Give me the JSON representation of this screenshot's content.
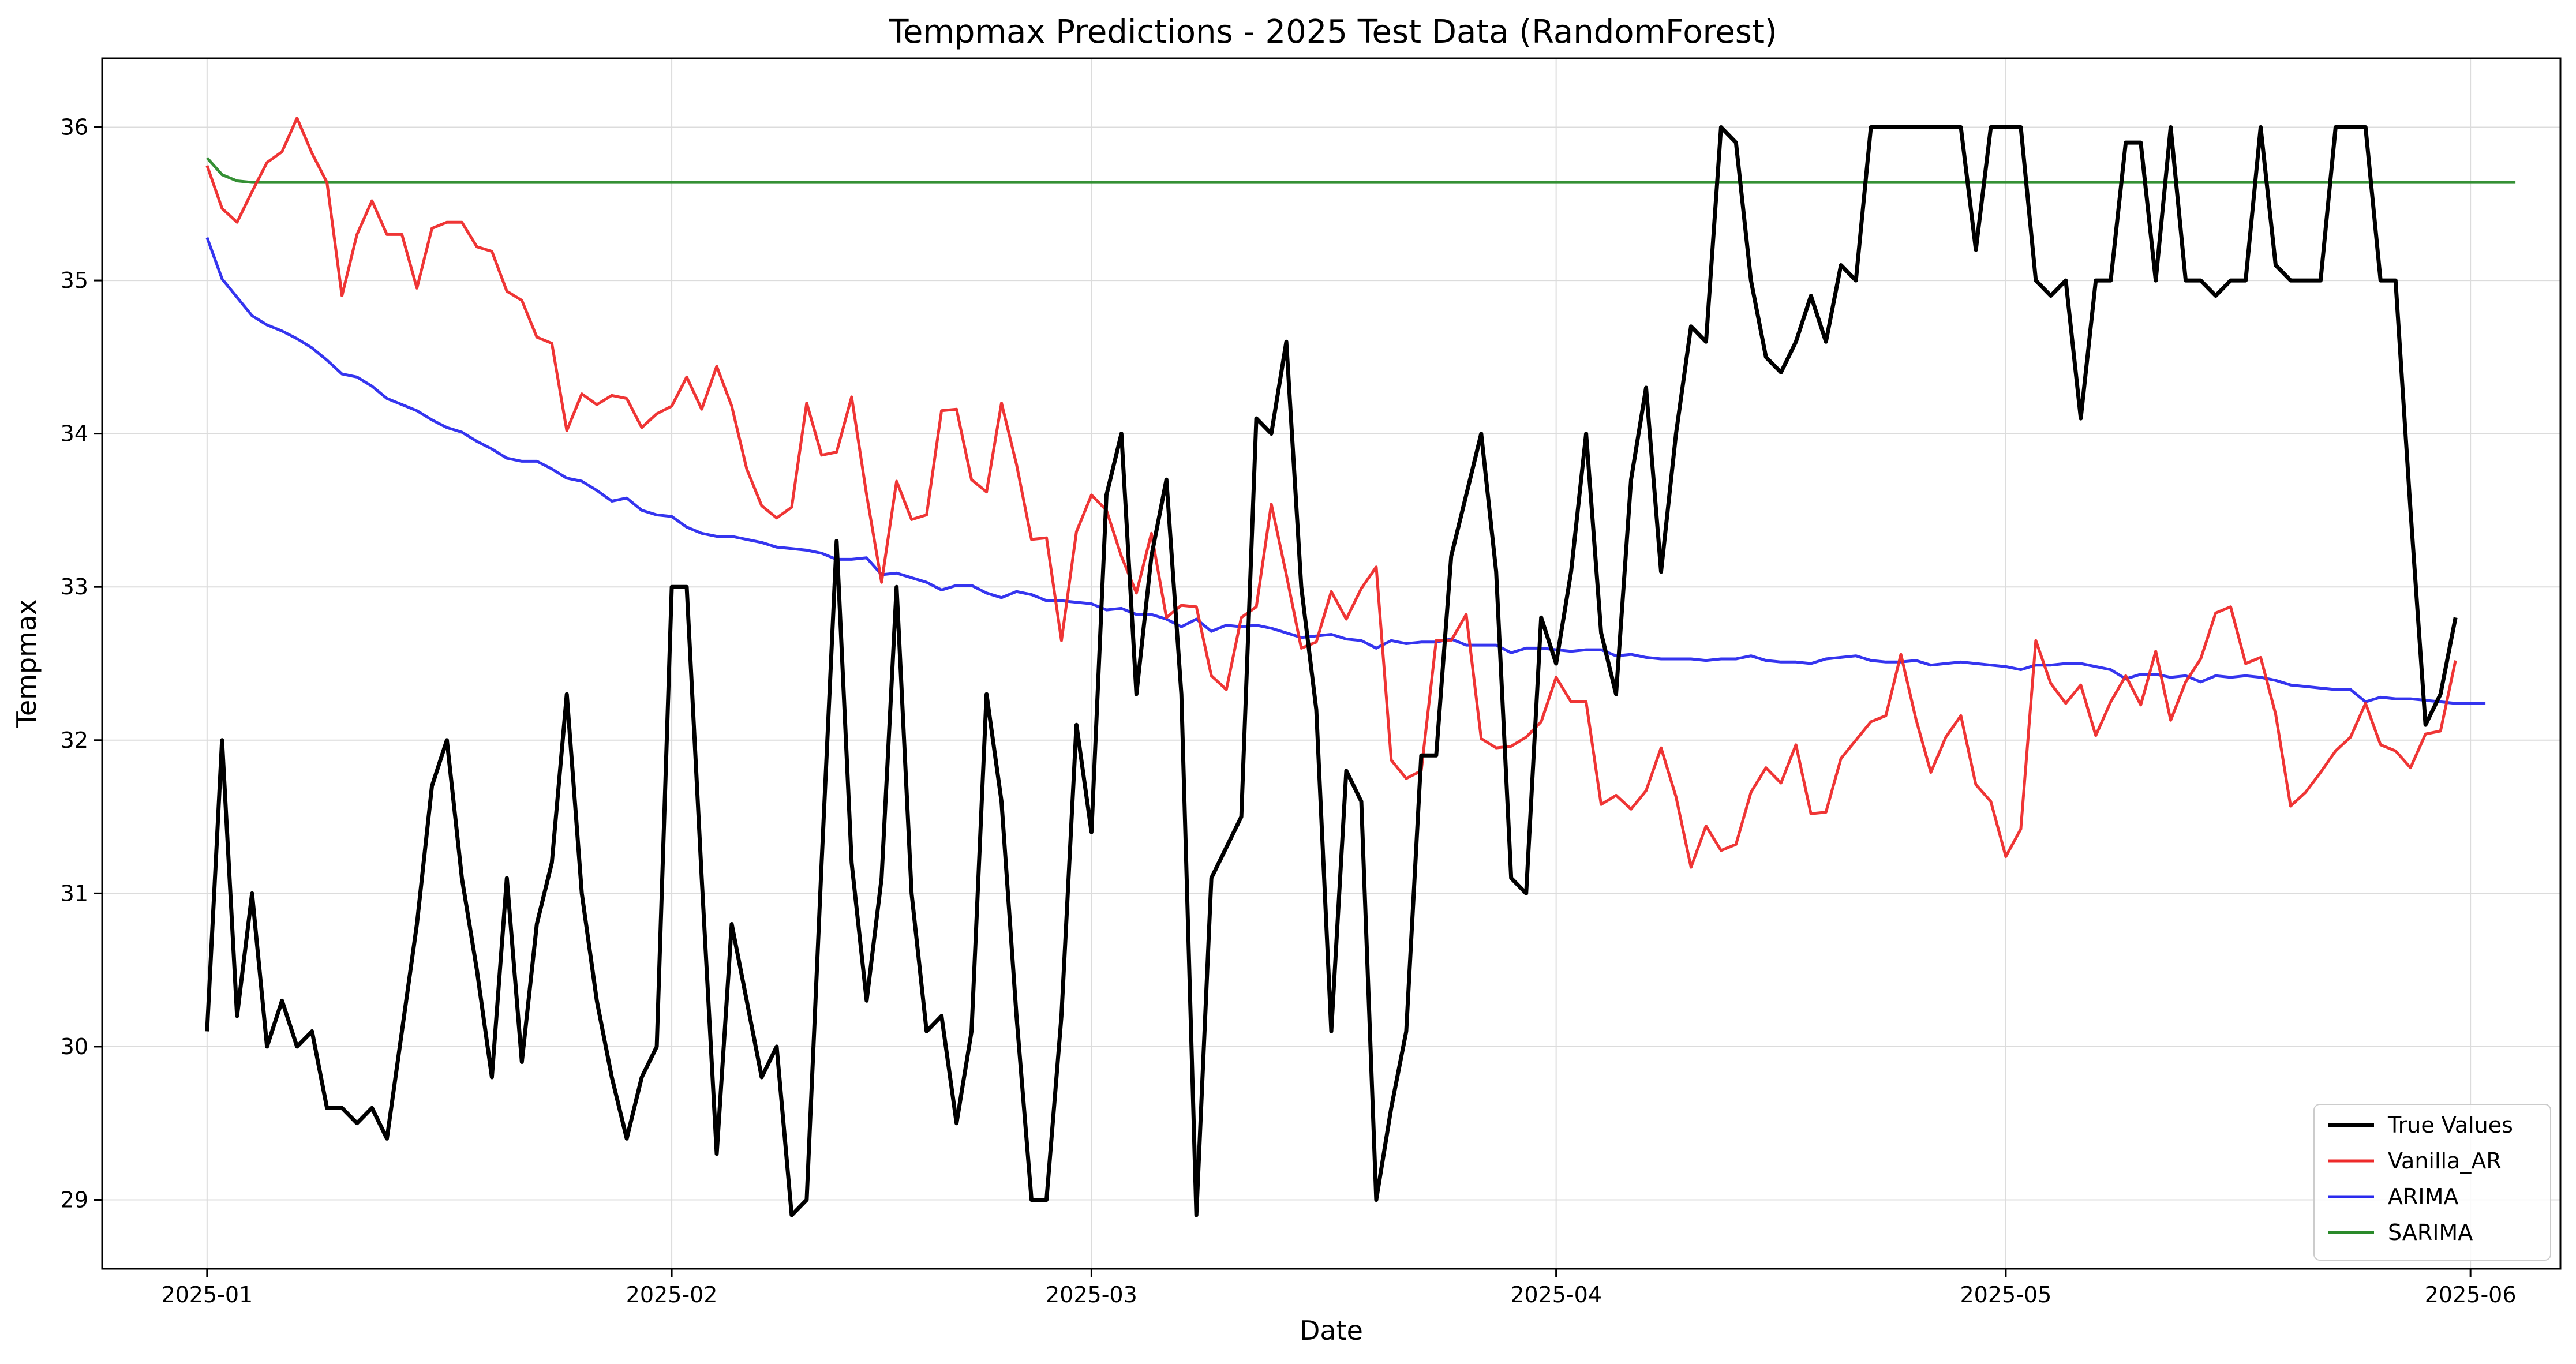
{
  "chart_data": {
    "type": "line",
    "title": "Tempmax Predictions - 2025 Test Data (RandomForest)",
    "xlabel": "Date",
    "ylabel": "Tempmax",
    "x_start": "2025-01-01",
    "x_step_days": 1,
    "xlim": [
      "2024-12-25",
      "2025-06-07"
    ],
    "ylim": [
      28.55,
      36.45
    ],
    "x_ticks": [
      "2025-01",
      "2025-02",
      "2025-03",
      "2025-04",
      "2025-05",
      "2025-06"
    ],
    "y_ticks": [
      29,
      30,
      31,
      32,
      33,
      34,
      35,
      36
    ],
    "grid": true,
    "legend_position": "lower-right",
    "series": [
      {
        "name": "True Values",
        "color": "#000000",
        "values": [
          30.1,
          32.0,
          30.2,
          31.0,
          30.0,
          30.3,
          30.0,
          30.1,
          29.6,
          29.6,
          29.5,
          29.6,
          29.4,
          30.1,
          30.8,
          31.7,
          32.0,
          31.1,
          30.5,
          29.8,
          31.1,
          29.9,
          30.8,
          31.2,
          32.3,
          31.0,
          30.3,
          29.8,
          29.4,
          29.8,
          30.0,
          33.0,
          33.0,
          31.1,
          29.3,
          30.8,
          30.3,
          29.8,
          30.0,
          28.9,
          29.0,
          31.2,
          33.3,
          31.2,
          30.3,
          31.1,
          33.0,
          31.0,
          30.1,
          30.2,
          29.5,
          30.1,
          32.3,
          31.6,
          30.2,
          29.0,
          29.0,
          30.2,
          32.1,
          31.4,
          33.6,
          34.0,
          32.3,
          33.2,
          33.7,
          32.3,
          28.9,
          31.1,
          31.3,
          31.5,
          34.1,
          34.0,
          34.6,
          33.0,
          32.2,
          30.1,
          31.8,
          31.6,
          29.0,
          29.6,
          30.1,
          31.9,
          31.9,
          33.2,
          33.6,
          34.0,
          33.1,
          31.1,
          31.0,
          32.8,
          32.5,
          33.1,
          34.0,
          32.7,
          32.3,
          33.7,
          34.3,
          33.1,
          34.0,
          34.7,
          34.6,
          36.0,
          35.9,
          35.0,
          34.5,
          34.4,
          34.6,
          34.9,
          34.6,
          35.1,
          35.0,
          36.0,
          36.0,
          36.0,
          36.0,
          36.0,
          36.0,
          36.0,
          35.2,
          36.0,
          36.0,
          36.0,
          35.0,
          34.9,
          35.0,
          34.1,
          35.0,
          35.0,
          35.9,
          35.9,
          35.0,
          36.0,
          35.0,
          35.0,
          34.9,
          35.0,
          35.0,
          36.0,
          35.1,
          35.0,
          35.0,
          35.0,
          36.0,
          36.0,
          36.0,
          35.0,
          35.0,
          33.5,
          32.1,
          32.3,
          32.8
        ]
      },
      {
        "name": "Vanilla_AR",
        "color": "#ee2a2a",
        "values": [
          35.75,
          35.47,
          35.38,
          35.58,
          35.77,
          35.84,
          36.06,
          35.83,
          35.64,
          34.9,
          35.3,
          35.52,
          35.3,
          35.3,
          34.95,
          35.34,
          35.38,
          35.38,
          35.22,
          35.19,
          34.93,
          34.87,
          34.63,
          34.59,
          34.02,
          34.26,
          34.19,
          34.25,
          34.23,
          34.04,
          34.13,
          34.18,
          34.37,
          34.16,
          34.44,
          34.18,
          33.77,
          33.53,
          33.45,
          33.52,
          34.2,
          33.86,
          33.88,
          34.24,
          33.6,
          33.03,
          33.69,
          33.44,
          33.47,
          34.15,
          34.16,
          33.7,
          33.62,
          34.2,
          33.8,
          33.31,
          33.32,
          32.65,
          33.36,
          33.6,
          33.5,
          33.2,
          32.96,
          33.35,
          32.8,
          32.88,
          32.87,
          32.42,
          32.33,
          32.8,
          32.87,
          33.54,
          33.08,
          32.6,
          32.64,
          32.97,
          32.79,
          32.99,
          33.13,
          31.87,
          31.75,
          31.8,
          32.65,
          32.65,
          32.82,
          32.01,
          31.95,
          31.96,
          32.02,
          32.12,
          32.41,
          32.25,
          32.25,
          31.58,
          31.64,
          31.55,
          31.67,
          31.95,
          31.63,
          31.17,
          31.44,
          31.28,
          31.32,
          31.66,
          31.82,
          31.72,
          31.97,
          31.52,
          31.53,
          31.88,
          32.0,
          32.12,
          32.16,
          32.56,
          32.14,
          31.79,
          32.02,
          32.16,
          31.71,
          31.6,
          31.24,
          31.42,
          32.65,
          32.37,
          32.24,
          32.36,
          32.03,
          32.25,
          32.42,
          32.23,
          32.58,
          32.13,
          32.38,
          32.53,
          32.83,
          32.87,
          32.5,
          32.54,
          32.17,
          31.57,
          31.66,
          31.79,
          31.93,
          32.02,
          32.24,
          31.97,
          31.93,
          31.82,
          32.04,
          32.06,
          32.52
        ]
      },
      {
        "name": "ARIMA",
        "color": "#2a2aee",
        "values": [
          35.28,
          35.01,
          34.89,
          34.77,
          34.71,
          34.67,
          34.62,
          34.56,
          34.48,
          34.39,
          34.37,
          34.31,
          34.23,
          34.19,
          34.15,
          34.09,
          34.04,
          34.01,
          33.95,
          33.9,
          33.84,
          33.82,
          33.82,
          33.77,
          33.71,
          33.69,
          33.63,
          33.56,
          33.58,
          33.5,
          33.47,
          33.46,
          33.39,
          33.35,
          33.33,
          33.33,
          33.31,
          33.29,
          33.26,
          33.25,
          33.24,
          33.22,
          33.18,
          33.18,
          33.19,
          33.08,
          33.09,
          33.06,
          33.03,
          32.98,
          33.01,
          33.01,
          32.96,
          32.93,
          32.97,
          32.95,
          32.91,
          32.91,
          32.9,
          32.89,
          32.85,
          32.86,
          32.82,
          32.82,
          32.79,
          32.74,
          32.79,
          32.71,
          32.75,
          32.74,
          32.75,
          32.73,
          32.7,
          32.67,
          32.68,
          32.69,
          32.66,
          32.65,
          32.6,
          32.65,
          32.63,
          32.64,
          32.64,
          32.66,
          32.62,
          32.62,
          32.62,
          32.57,
          32.6,
          32.6,
          32.59,
          32.58,
          32.59,
          32.59,
          32.55,
          32.56,
          32.54,
          32.53,
          32.53,
          32.53,
          32.52,
          32.53,
          32.53,
          32.55,
          32.52,
          32.51,
          32.51,
          32.5,
          32.53,
          32.54,
          32.55,
          32.52,
          32.51,
          32.51,
          32.52,
          32.49,
          32.5,
          32.51,
          32.5,
          32.49,
          32.48,
          32.46,
          32.49,
          32.49,
          32.5,
          32.5,
          32.48,
          32.46,
          32.4,
          32.43,
          32.43,
          32.41,
          32.42,
          32.38,
          32.42,
          32.41,
          32.42,
          32.41,
          32.39,
          32.36,
          32.35,
          32.34,
          32.33,
          32.33,
          32.25,
          32.28,
          32.27,
          32.27,
          32.26,
          32.25,
          32.24,
          32.24,
          32.24
        ]
      },
      {
        "name": "SARIMA",
        "color": "#2a8a2a",
        "values": [
          35.8,
          35.69,
          35.65,
          35.64,
          35.64,
          35.64,
          35.64,
          35.64,
          35.64,
          35.64,
          35.64,
          35.64,
          35.64,
          35.64,
          35.64,
          35.64,
          35.64,
          35.64,
          35.64,
          35.64,
          35.64,
          35.64,
          35.64,
          35.64,
          35.64,
          35.64,
          35.64,
          35.64,
          35.64,
          35.64,
          35.64,
          35.64,
          35.64,
          35.64,
          35.64,
          35.64,
          35.64,
          35.64,
          35.64,
          35.64,
          35.64,
          35.64,
          35.64,
          35.64,
          35.64,
          35.64,
          35.64,
          35.64,
          35.64,
          35.64,
          35.64,
          35.64,
          35.64,
          35.64,
          35.64,
          35.64,
          35.64,
          35.64,
          35.64,
          35.64,
          35.64,
          35.64,
          35.64,
          35.64,
          35.64,
          35.64,
          35.64,
          35.64,
          35.64,
          35.64,
          35.64,
          35.64,
          35.64,
          35.64,
          35.64,
          35.64,
          35.64,
          35.64,
          35.64,
          35.64,
          35.64,
          35.64,
          35.64,
          35.64,
          35.64,
          35.64,
          35.64,
          35.64,
          35.64,
          35.64,
          35.64,
          35.64,
          35.64,
          35.64,
          35.64,
          35.64,
          35.64,
          35.64,
          35.64,
          35.64,
          35.64,
          35.64,
          35.64,
          35.64,
          35.64,
          35.64,
          35.64,
          35.64,
          35.64,
          35.64,
          35.64,
          35.64,
          35.64,
          35.64,
          35.64,
          35.64,
          35.64,
          35.64,
          35.64,
          35.64,
          35.64,
          35.64,
          35.64,
          35.64,
          35.64,
          35.64,
          35.64,
          35.64,
          35.64,
          35.64,
          35.64,
          35.64,
          35.64,
          35.64,
          35.64,
          35.64,
          35.64,
          35.64,
          35.64,
          35.64,
          35.64,
          35.64,
          35.64,
          35.64,
          35.64,
          35.64,
          35.64,
          35.64,
          35.64,
          35.64,
          35.64,
          35.64,
          35.64,
          35.64,
          35.64
        ]
      }
    ]
  }
}
